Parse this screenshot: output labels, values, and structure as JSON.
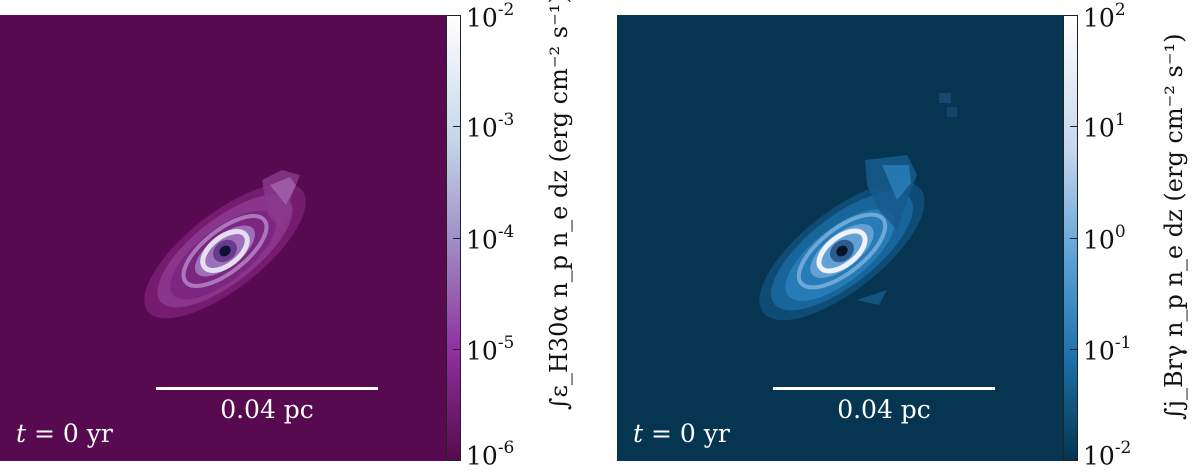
{
  "panels": [
    {
      "id": "h30a",
      "background": "#570a4f",
      "ring_color": "#8a2a86",
      "inner_color": "#c9b8e0",
      "core_color": "#101030",
      "scale_label": "0.04 pc",
      "time_label_var": "t",
      "time_label_rest": "= 0 yr",
      "colorbar": {
        "gradient": [
          "#ffffff",
          "#c6d6e8",
          "#a090c8",
          "#9030a0",
          "#570a4f"
        ],
        "ticks": [
          {
            "mantissa": "10",
            "exponent": "-2"
          },
          {
            "mantissa": "10",
            "exponent": "-3"
          },
          {
            "mantissa": "10",
            "exponent": "-4"
          },
          {
            "mantissa": "10",
            "exponent": "-5"
          },
          {
            "mantissa": "10",
            "exponent": "-6"
          }
        ],
        "label": "∫ε_H30α n_p n_e dz (erg cm⁻² s⁻¹)"
      }
    },
    {
      "id": "brg",
      "background": "#053550",
      "ring_color": "#2b7ab0",
      "inner_color": "#c8d8ee",
      "core_color": "#061426",
      "scale_label": "0.04 pc",
      "time_label_var": "t",
      "time_label_rest": "= 0 yr",
      "colorbar": {
        "gradient": [
          "#ffffff",
          "#c8d6ec",
          "#5aa0d8",
          "#1a6fa8",
          "#053550"
        ],
        "ticks": [
          {
            "mantissa": "10",
            "exponent": "2"
          },
          {
            "mantissa": "10",
            "exponent": "1"
          },
          {
            "mantissa": "10",
            "exponent": "0"
          },
          {
            "mantissa": "10",
            "exponent": "-1"
          },
          {
            "mantissa": "10",
            "exponent": "-2"
          }
        ],
        "label": "∫j_Brγ n_p n_e dz (erg cm⁻² s⁻¹)"
      }
    }
  ]
}
